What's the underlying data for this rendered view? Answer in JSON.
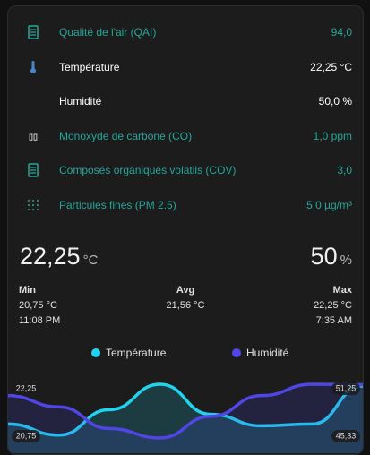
{
  "entities": [
    {
      "name": "Qualité de l'air (QAI)",
      "state": "94,0",
      "color": "#26a69a"
    },
    {
      "name": "Température",
      "state": "22,25 °C",
      "color": "#ffffff"
    },
    {
      "name": "Humidité",
      "state": "50,0 %",
      "color": "#ffffff"
    },
    {
      "name": "Monoxyde de carbone (CO)",
      "state": "1,0 ppm",
      "color": "#26a69a"
    },
    {
      "name": "Composés organiques volatils (COV)",
      "state": "3,0",
      "color": "#26a69a"
    },
    {
      "name": "Particules fines (PM 2.5)",
      "state": "5,0 µg/m³",
      "color": "#26a69a"
    }
  ],
  "sensor_card": {
    "temperature": "22,25",
    "temperature_unit": "°C",
    "humidity": "50",
    "humidity_unit": "%",
    "stats": [
      {
        "label": "Min",
        "value": "20,75 °C",
        "time": "11:08 PM"
      },
      {
        "label": "Avg",
        "value": "21,56 °C"
      },
      {
        "label": "Max",
        "value": "22,25 °C",
        "time": "7:35 AM"
      }
    ]
  },
  "graph": {
    "type": "line",
    "series": [
      {
        "name": "Température",
        "color": "#22d3ee",
        "values": [
          21.14,
          20.83,
          21.54,
          22.25,
          21.41,
          21.09,
          21.14,
          22.2
        ],
        "ylim": [
          20.75,
          22.25
        ],
        "yticks": [
          {
            "value": 20.75,
            "label": "20,75"
          },
          {
            "value": 22.25,
            "label": "22,25"
          }
        ]
      },
      {
        "name": "Humidité",
        "color": "#4f46e5",
        "values": [
          50.0,
          48.76,
          46.37,
          45.33,
          47.72,
          50.0,
          51.25,
          51.2
        ],
        "ylim": [
          45.33,
          51.25
        ],
        "yticks": [
          {
            "value": 45.33,
            "label": "45,33"
          },
          {
            "value": 51.25,
            "label": "51,25"
          }
        ]
      }
    ]
  }
}
